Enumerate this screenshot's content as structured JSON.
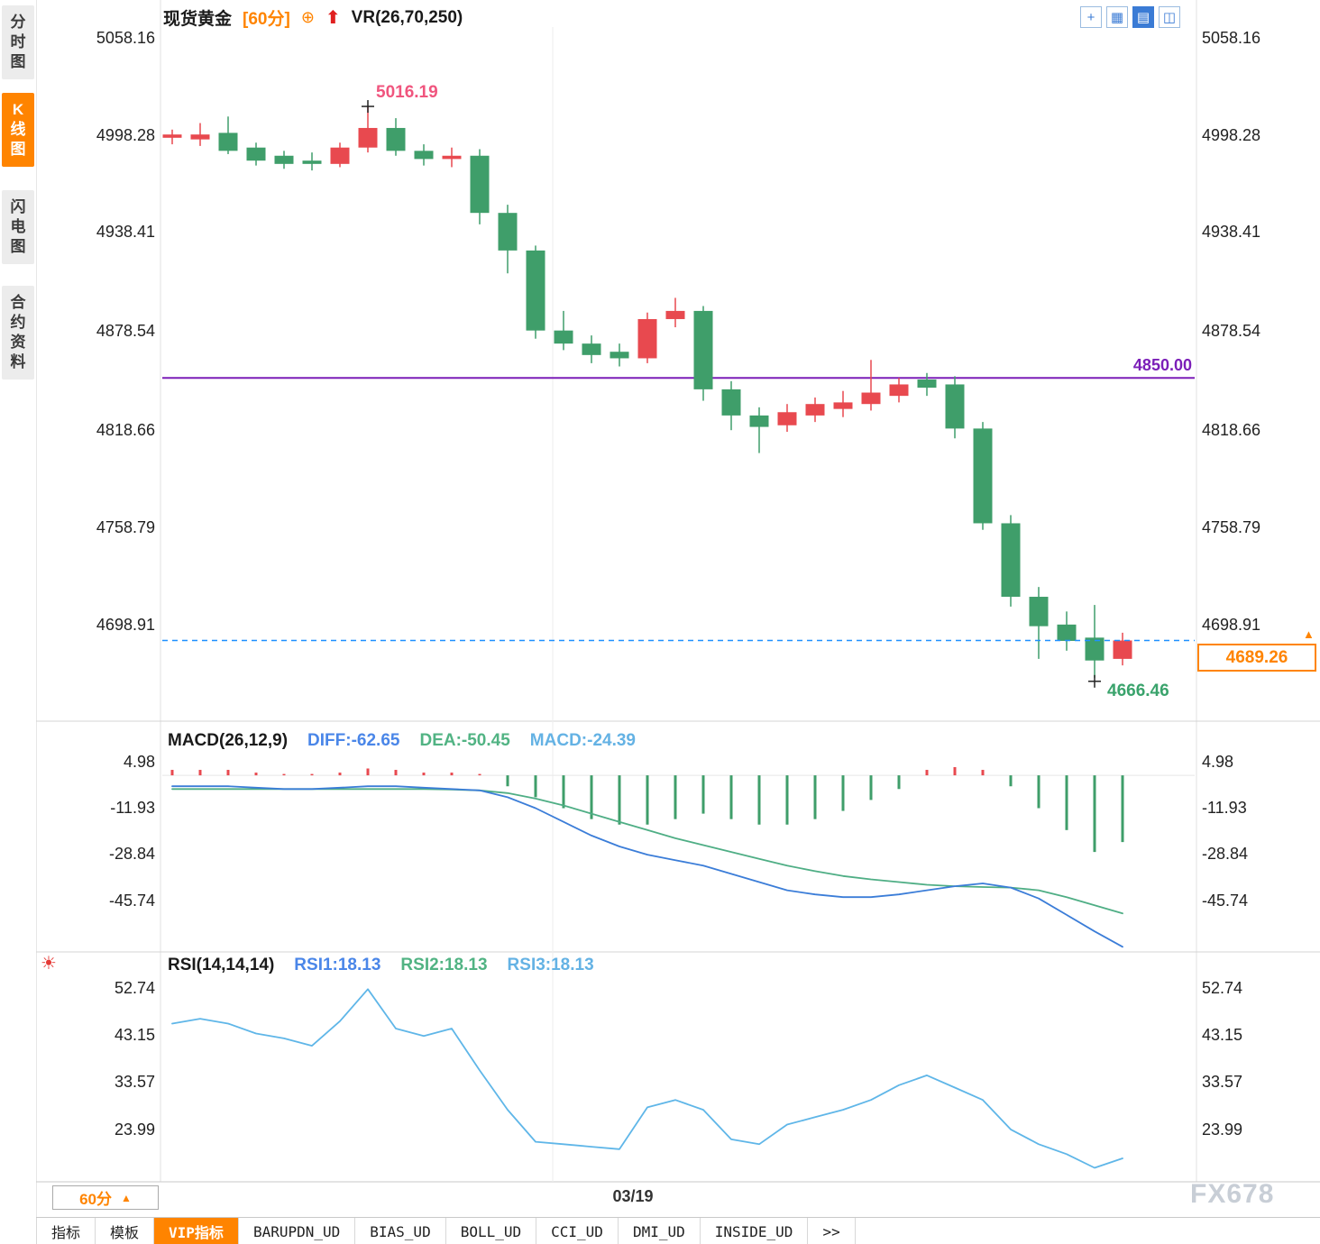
{
  "sidebar": {
    "tabs": [
      {
        "name": "time-share-chart",
        "label": "分时图",
        "active": false
      },
      {
        "name": "kline-chart",
        "label": "K线图",
        "active": true
      },
      {
        "name": "flash-chart",
        "label": "闪电图",
        "active": false
      },
      {
        "name": "contract-info",
        "label": "合约资料",
        "active": false
      }
    ]
  },
  "header": {
    "symbol": "现货黄金",
    "period": "[60分]",
    "target_icon": "⊕",
    "arrow_icon": "⬆",
    "indicator": "VR(26,70,250)"
  },
  "toolbar": {
    "icons": [
      {
        "name": "crosshair",
        "glyph": "+",
        "active": false
      },
      {
        "name": "grid-chart",
        "glyph": "▦",
        "active": false
      },
      {
        "name": "candle-chart",
        "glyph": "▤",
        "active": true
      },
      {
        "name": "compare-window",
        "glyph": "◫",
        "active": false
      }
    ]
  },
  "icons": {
    "up_triangle": "▲",
    "sun": "☀"
  },
  "main_chart": {
    "y_axis_labels": [
      "5058.16",
      "4998.28",
      "4938.41",
      "4878.54",
      "4818.66",
      "4758.79",
      "4698.91"
    ],
    "hline_label": "4850.00",
    "high_label": "5016.19",
    "low_label": "4666.46",
    "last_price": "4689.26"
  },
  "macd": {
    "title": "MACD(26,12,9)",
    "diff_label": "DIFF:-62.65",
    "dea_label": "DEA:-50.45",
    "macd_label": "MACD:-24.39",
    "y_axis_labels": [
      "4.98",
      "-11.93",
      "-28.84",
      "-45.74"
    ]
  },
  "rsi": {
    "title": "RSI(14,14,14)",
    "rsi1_label": "RSI1:18.13",
    "rsi2_label": "RSI2:18.13",
    "rsi3_label": "RSI3:18.13",
    "y_axis_labels": [
      "52.74",
      "43.15",
      "33.57",
      "23.99"
    ]
  },
  "footer": {
    "period_label": "60分",
    "date_label": "03/19",
    "watermark": "FX678"
  },
  "bottom_tabs": [
    {
      "name": "indicators",
      "label": "指标",
      "active": false
    },
    {
      "name": "templates",
      "label": "模板",
      "active": false
    },
    {
      "name": "vip-indicators",
      "label": "VIP指标",
      "active": true
    },
    {
      "name": "barupdn-ud",
      "label": "BARUPDN_UD",
      "active": false
    },
    {
      "name": "bias-ud",
      "label": "BIAS_UD",
      "active": false
    },
    {
      "name": "boll-ud",
      "label": "BOLL_UD",
      "active": false
    },
    {
      "name": "cci-ud",
      "label": "CCI_UD",
      "active": false
    },
    {
      "name": "dmi-ud",
      "label": "DMI_UD",
      "active": false
    },
    {
      "name": "inside-ud",
      "label": "INSIDE_UD",
      "active": false
    },
    {
      "name": "more",
      "label": ">>",
      "active": false
    }
  ],
  "colors": {
    "up": "#e8494f",
    "down": "#3f9e6a",
    "accent_orange": "#ff8400",
    "purple": "#7b1fb8",
    "last_price_blue": "#1e90ff",
    "high_label_pink": "#f0557e",
    "low_label_green": "#3aa36c",
    "diff_blue": "#3b7dd8",
    "dea_green": "#4fae85",
    "macd_lightblue": "#64b2e4",
    "rsi_line": "#5fb6e8",
    "toolbar_blue": "#3a7bd5"
  },
  "chart_data": {
    "type": "candlestick",
    "symbol": "现货黄金",
    "period": "60分",
    "x_tick_labels": [
      "03/19"
    ],
    "y_axis_ticks_main": [
      5058.16,
      4998.28,
      4938.41,
      4878.54,
      4818.66,
      4758.79,
      4698.91
    ],
    "hline": 4850.0,
    "last_price": 4689.26,
    "high": 5016.19,
    "high_index": 7,
    "low": 4666.46,
    "low_index": 33,
    "candles": [
      [
        4997,
        5002,
        4993,
        4999
      ],
      [
        4996,
        5006,
        4992,
        4999
      ],
      [
        5000,
        5010,
        4987,
        4989
      ],
      [
        4991,
        4994,
        4980,
        4983
      ],
      [
        4986,
        4989,
        4978,
        4981
      ],
      [
        4983,
        4988,
        4977,
        4981
      ],
      [
        4981,
        4994,
        4979,
        4991
      ],
      [
        4991,
        5016.19,
        4988,
        5003
      ],
      [
        5003,
        5009,
        4986,
        4989
      ],
      [
        4989,
        4993,
        4980,
        4984
      ],
      [
        4984,
        4991,
        4979,
        4986
      ],
      [
        4986,
        4990,
        4944,
        4951
      ],
      [
        4951,
        4956,
        4914,
        4928
      ],
      [
        4928,
        4931,
        4874,
        4879
      ],
      [
        4879,
        4891,
        4867,
        4871
      ],
      [
        4871,
        4876,
        4859,
        4864
      ],
      [
        4866,
        4871,
        4857,
        4862
      ],
      [
        4862,
        4890,
        4859,
        4886
      ],
      [
        4886,
        4899,
        4881,
        4891
      ],
      [
        4891,
        4894,
        4836,
        4843
      ],
      [
        4843,
        4848,
        4818,
        4827
      ],
      [
        4827,
        4832,
        4804,
        4820
      ],
      [
        4821,
        4834,
        4817,
        4829
      ],
      [
        4827,
        4838,
        4823,
        4834
      ],
      [
        4831,
        4842,
        4826,
        4835
      ],
      [
        4834,
        4861,
        4830,
        4841
      ],
      [
        4839,
        4850,
        4835,
        4846
      ],
      [
        4849,
        4853,
        4839,
        4844
      ],
      [
        4846,
        4851,
        4813,
        4819
      ],
      [
        4819,
        4823,
        4757,
        4761
      ],
      [
        4761,
        4766,
        4710,
        4716
      ],
      [
        4716,
        4722,
        4678,
        4698
      ],
      [
        4699,
        4707,
        4683,
        4689
      ],
      [
        4691,
        4711,
        4666.46,
        4677
      ],
      [
        4678,
        4694,
        4674,
        4689.26
      ]
    ],
    "macd": {
      "params": "26,12,9",
      "diff": -62.65,
      "dea": -50.45,
      "macd": -24.39,
      "y_axis_ticks": [
        4.98,
        -11.93,
        -28.84,
        -45.74
      ],
      "hist": [
        2,
        2,
        2,
        1,
        0.5,
        0.5,
        1,
        2.5,
        2,
        1,
        1,
        0.5,
        -4,
        -8,
        -12,
        -16,
        -18,
        -18,
        -16,
        -14,
        -16,
        -18,
        -18,
        -16,
        -13,
        -9,
        -5,
        2,
        3,
        2,
        -4,
        -12,
        -20,
        -28,
        -24.39
      ],
      "diff_line": [
        -4,
        -4,
        -4,
        -4.5,
        -5,
        -5,
        -4.5,
        -4,
        -4,
        -4.5,
        -5,
        -5.5,
        -8,
        -12,
        -17,
        -22,
        -26,
        -29,
        -31,
        -33,
        -36,
        -39,
        -42,
        -43.5,
        -44.5,
        -44.5,
        -43.5,
        -42,
        -40.5,
        -39.5,
        -41,
        -45,
        -51,
        -57,
        -62.65
      ],
      "dea_line": [
        -5,
        -5,
        -5,
        -5,
        -5,
        -5,
        -5,
        -5,
        -5,
        -5,
        -5.2,
        -5.5,
        -6.5,
        -8.5,
        -11,
        -14,
        -17,
        -20,
        -23,
        -25.5,
        -28,
        -30.5,
        -33,
        -35,
        -36.8,
        -38,
        -39,
        -40,
        -40.5,
        -40.8,
        -41,
        -42,
        -44.5,
        -47.5,
        -50.45
      ]
    },
    "rsi": {
      "params": "14,14,14",
      "rsi1": 18.13,
      "rsi2": 18.13,
      "rsi3": 18.13,
      "y_axis_ticks": [
        52.74,
        43.15,
        33.57,
        23.99
      ],
      "line": [
        45.5,
        46.5,
        45.5,
        43.5,
        42.5,
        41,
        46,
        52.5,
        44.5,
        43,
        44.5,
        36,
        28,
        21.5,
        21,
        20.5,
        20,
        28.5,
        30,
        28,
        22,
        21,
        25,
        26.5,
        28,
        30,
        33,
        35,
        32.5,
        30,
        24,
        21,
        19,
        16.2,
        18.13
      ]
    }
  }
}
